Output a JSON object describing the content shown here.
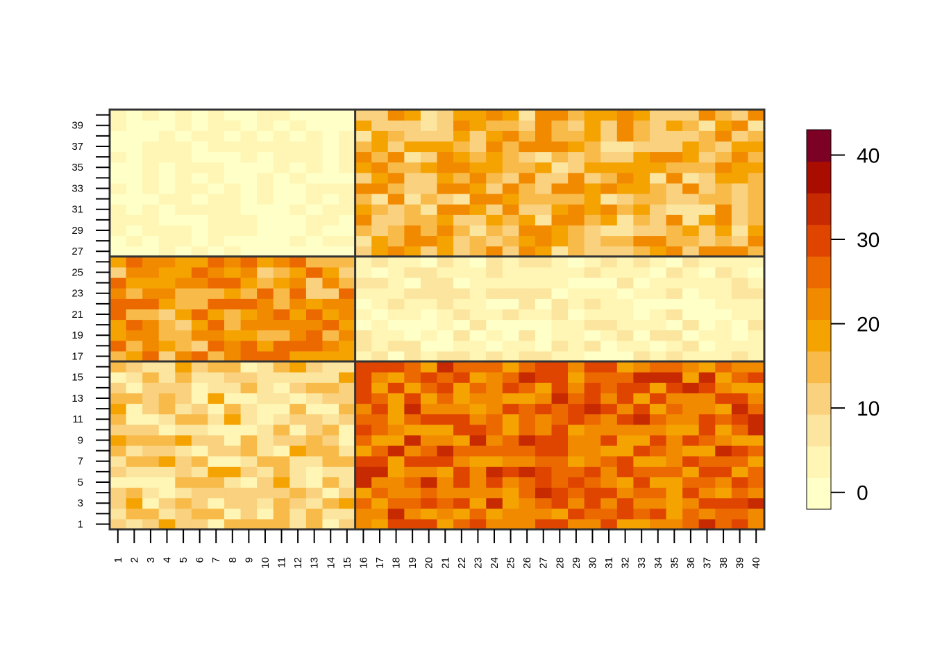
{
  "chart_data": {
    "type": "heatmap",
    "title": "",
    "xlabel": "",
    "ylabel": "",
    "x_categories": [
      "1",
      "2",
      "3",
      "4",
      "5",
      "6",
      "7",
      "8",
      "9",
      "10",
      "11",
      "12",
      "13",
      "14",
      "15",
      "16",
      "17",
      "18",
      "19",
      "20",
      "21",
      "22",
      "23",
      "24",
      "25",
      "26",
      "27",
      "28",
      "29",
      "30",
      "31",
      "32",
      "33",
      "34",
      "35",
      "36",
      "37",
      "38",
      "39",
      "40"
    ],
    "y_tick_labels": [
      "1",
      "3",
      "5",
      "7",
      "9",
      "11",
      "13",
      "15",
      "17",
      "19",
      "21",
      "23",
      "25",
      "27",
      "29",
      "31",
      "33",
      "35",
      "37",
      "39"
    ],
    "n_rows": 40,
    "n_cols": 40,
    "block_boundaries": {
      "columns": [
        15
      ],
      "rows": [
        16,
        26
      ]
    },
    "blocks": [
      {
        "rows": [
          1,
          16
        ],
        "cols": [
          1,
          15
        ],
        "approx_mean": 10
      },
      {
        "rows": [
          1,
          16
        ],
        "cols": [
          16,
          40
        ],
        "approx_mean": 25
      },
      {
        "rows": [
          17,
          26
        ],
        "cols": [
          1,
          15
        ],
        "approx_mean": 20
      },
      {
        "rows": [
          17,
          26
        ],
        "cols": [
          16,
          40
        ],
        "approx_mean": 4
      },
      {
        "rows": [
          27,
          40
        ],
        "cols": [
          1,
          15
        ],
        "approx_mean": 1.5
      },
      {
        "rows": [
          27,
          40
        ],
        "cols": [
          16,
          40
        ],
        "approx_mean": 16
      }
    ],
    "colorbar": {
      "range": [
        -2,
        43
      ],
      "ticks": [
        0,
        10,
        20,
        30,
        40
      ],
      "colors": [
        "#FFFFC8",
        "#FFF5B4",
        "#FCE59E",
        "#F9D17F",
        "#F8BB4A",
        "#F5A300",
        "#F28A00",
        "#EC6900",
        "#E04500",
        "#C72A00",
        "#A80D00",
        "#7D0025"
      ]
    },
    "legend": "right",
    "grid": false
  }
}
